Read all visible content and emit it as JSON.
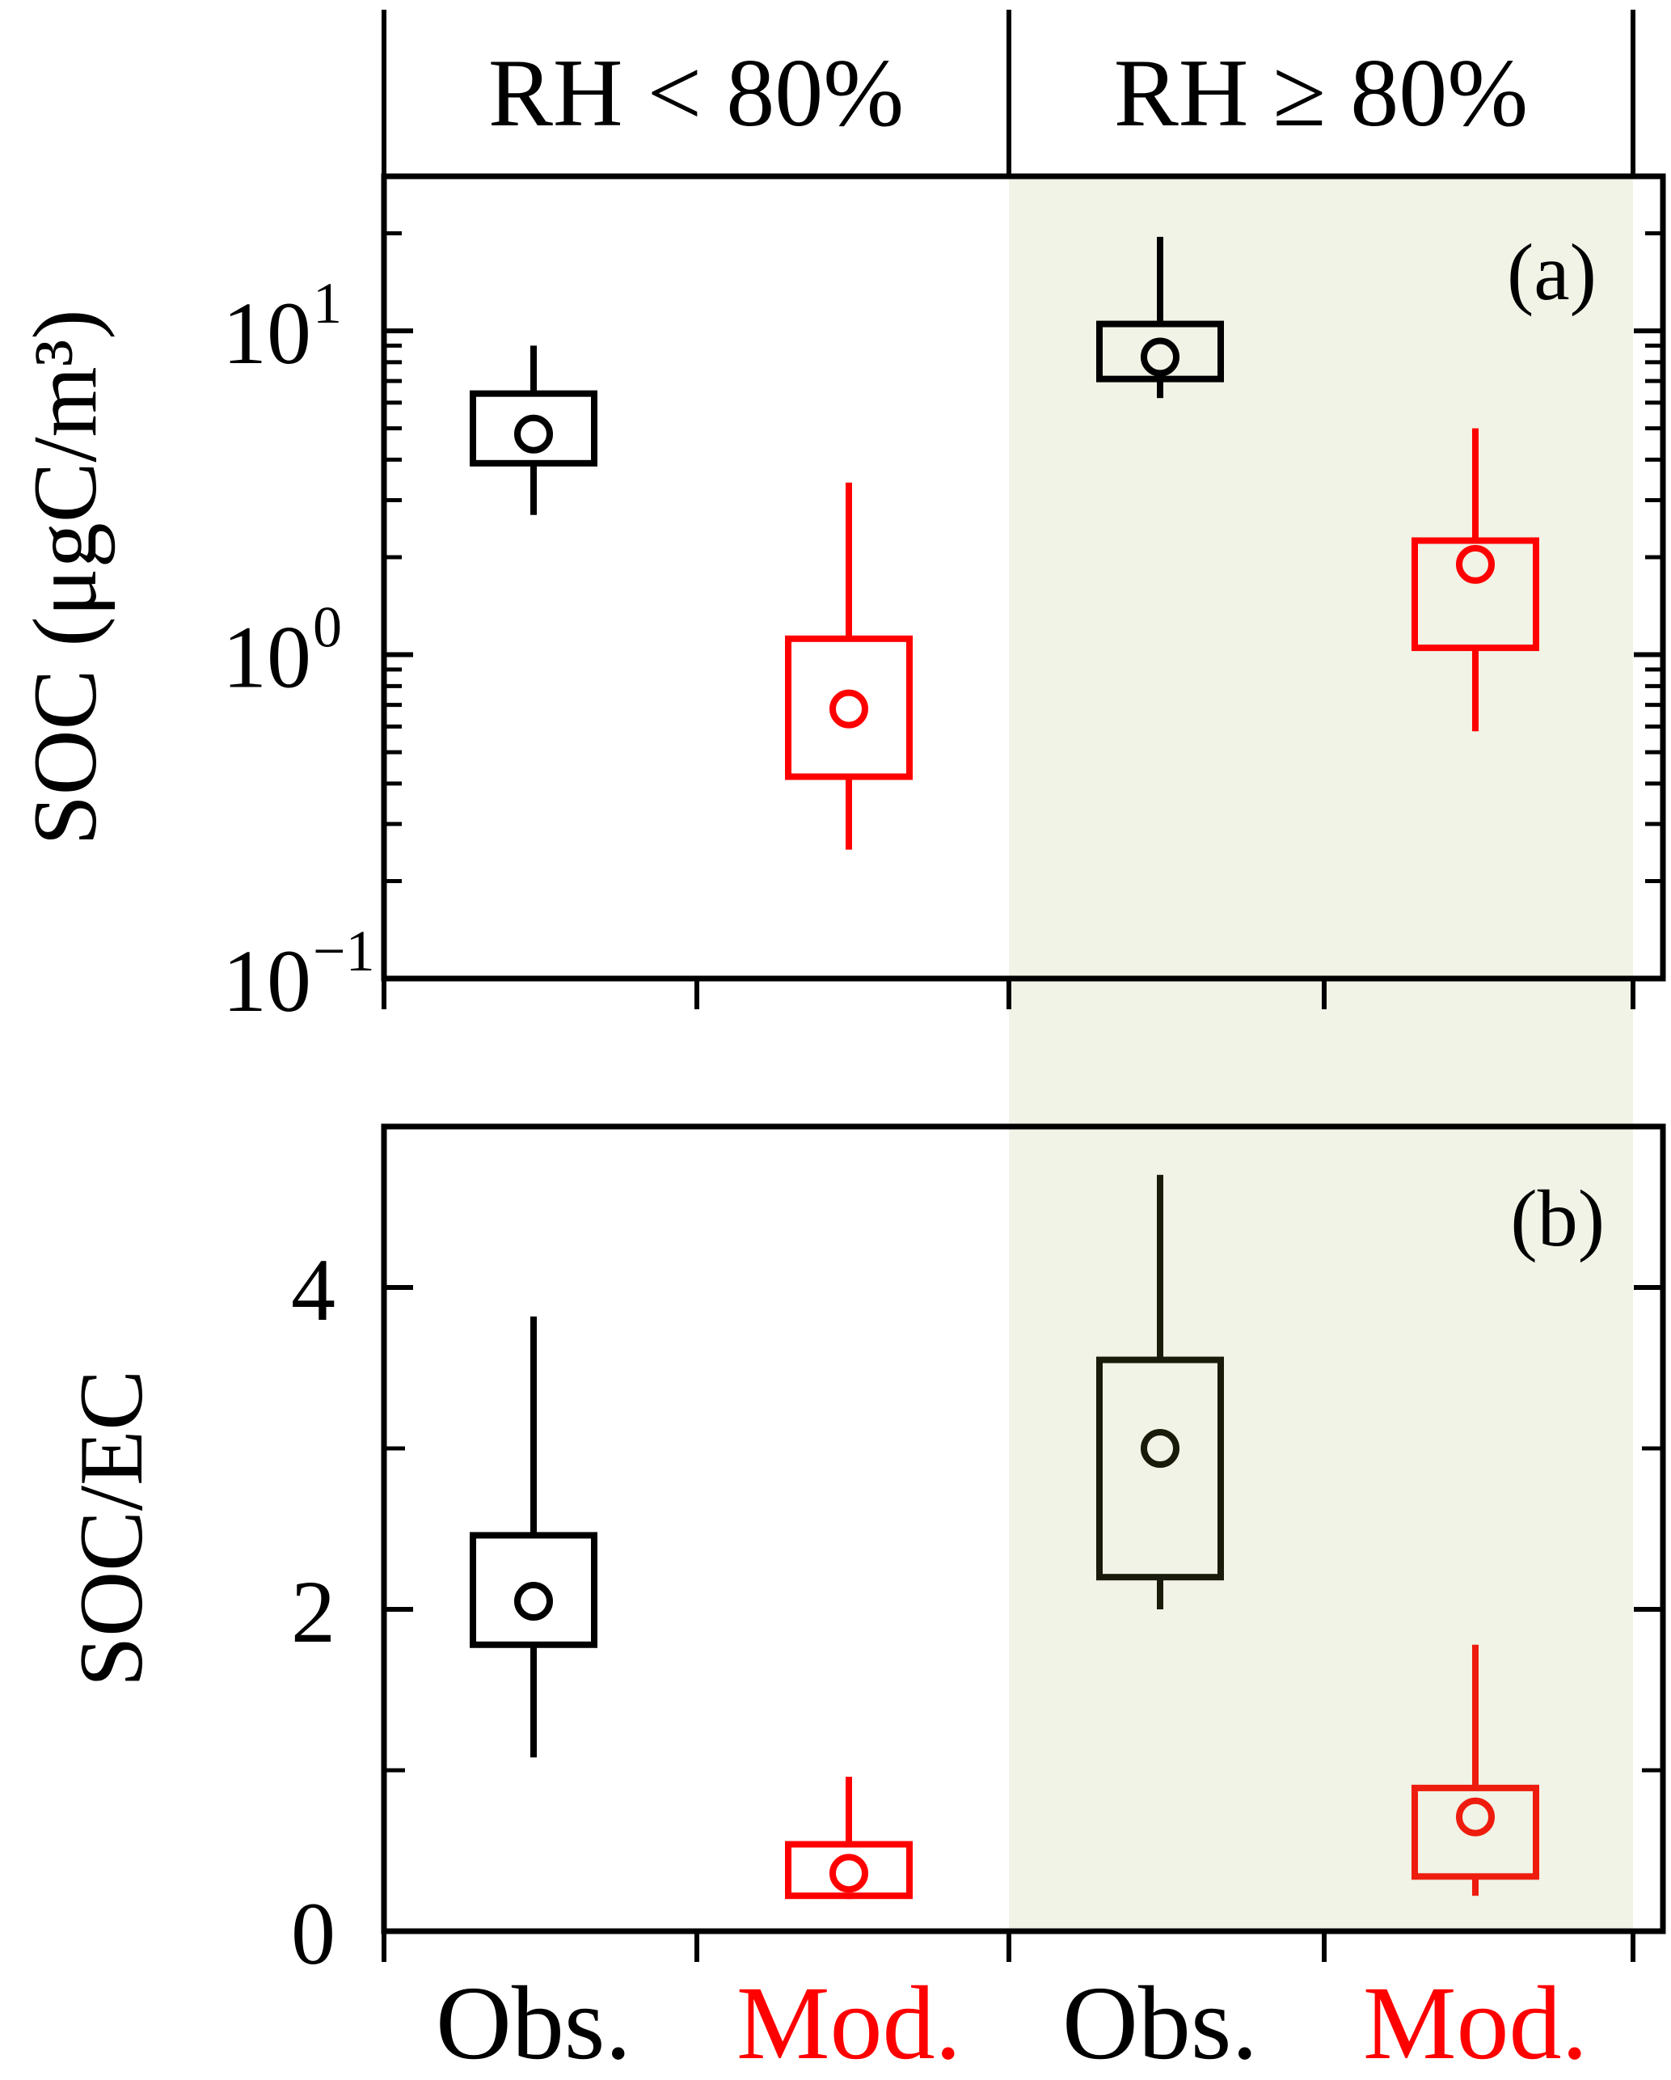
{
  "chart_data": {
    "type": "box",
    "condition_labels": [
      "RH < 80%",
      "RH ≥ 80%"
    ],
    "x_labels": [
      "Obs.",
      "Mod.",
      "Obs.",
      "Mod."
    ],
    "x_label_colors": [
      "#000000",
      "#ff0000",
      "#000000",
      "#ff0000"
    ],
    "shading_color": "#f0f3e6",
    "panels": [
      {
        "id": "a",
        "panel_label": "(a)",
        "ylabel": "SOC (μgC/m³)",
        "yscale": "log",
        "ylim": [
          0.1,
          30
        ],
        "yticks": [
          {
            "value": 0.1,
            "base": "10",
            "exp": "−1"
          },
          {
            "value": 1,
            "base": "10",
            "exp": "0"
          },
          {
            "value": 10,
            "base": "10",
            "exp": "1"
          }
        ],
        "boxes": [
          {
            "group": "RH < 80%",
            "source": "Obs.",
            "color": "#000000",
            "whisker_low": 2.7,
            "q1": 3.9,
            "median": 4.8,
            "q3": 6.4,
            "whisker_high": 9.0
          },
          {
            "group": "RH < 80%",
            "source": "Mod.",
            "color": "#ff0000",
            "whisker_low": 0.25,
            "q1": 0.42,
            "median": 0.68,
            "q3": 1.12,
            "whisker_high": 3.4
          },
          {
            "group": "RH ≥ 80%",
            "source": "Obs.",
            "color": "#000000",
            "whisker_low": 6.2,
            "q1": 7.1,
            "median": 8.3,
            "q3": 10.5,
            "whisker_high": 19.5
          },
          {
            "group": "RH ≥ 80%",
            "source": "Mod.",
            "color": "#ff0000",
            "whisker_low": 0.58,
            "q1": 1.05,
            "median": 1.9,
            "q3": 2.25,
            "whisker_high": 5.0
          }
        ]
      },
      {
        "id": "b",
        "panel_label": "(b)",
        "ylabel": "SOC/EC",
        "yscale": "linear",
        "ylim": [
          0,
          5
        ],
        "yticks": [
          {
            "value": 0,
            "label": "0"
          },
          {
            "value": 2,
            "label": "2"
          },
          {
            "value": 4,
            "label": "4"
          }
        ],
        "minor_yticks": [
          1,
          3,
          5
        ],
        "boxes": [
          {
            "group": "RH < 80%",
            "source": "Obs.",
            "color": "#000000",
            "whisker_low": 1.08,
            "q1": 1.78,
            "median": 2.05,
            "q3": 2.46,
            "whisker_high": 3.82
          },
          {
            "group": "RH < 80%",
            "source": "Mod.",
            "color": "#ff0000",
            "whisker_low": 0.2,
            "q1": 0.22,
            "median": 0.36,
            "q3": 0.54,
            "whisker_high": 0.96
          },
          {
            "group": "RH ≥ 80%",
            "source": "Obs.",
            "color": "#1a1a0a",
            "whisker_low": 2.0,
            "q1": 2.2,
            "median": 3.0,
            "q3": 3.55,
            "whisker_high": 4.7
          },
          {
            "group": "RH ≥ 80%",
            "source": "Mod.",
            "color": "#ee1c0e",
            "whisker_low": 0.22,
            "q1": 0.34,
            "median": 0.71,
            "q3": 0.89,
            "whisker_high": 1.78
          }
        ]
      }
    ]
  }
}
